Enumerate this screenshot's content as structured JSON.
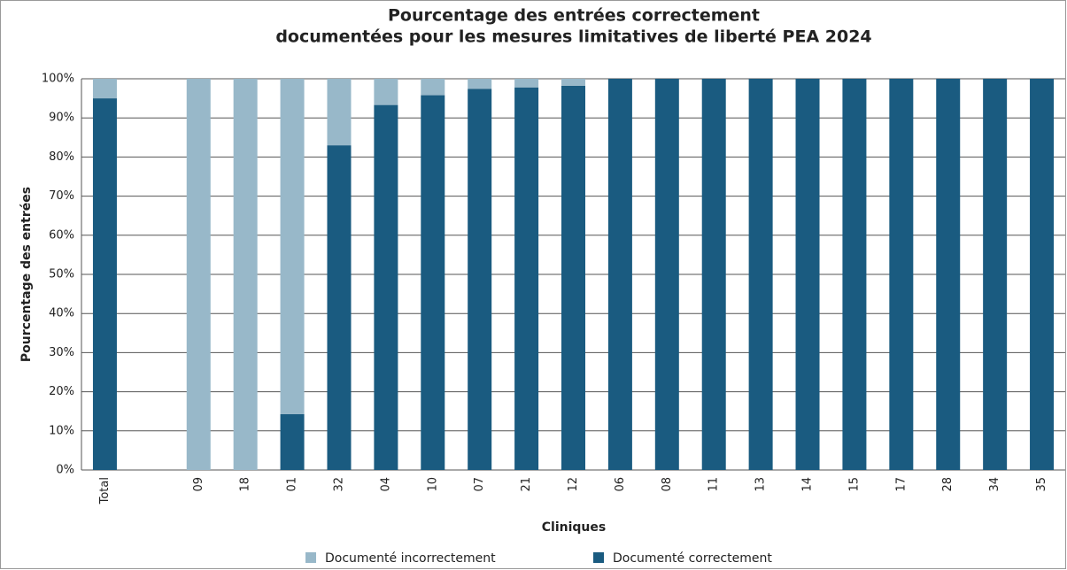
{
  "chart_data": {
    "type": "stacked_bar",
    "title": [
      "Pourcentage des entrées correctement",
      "documentées pour les mesures limitatives de liberté PEA 2024"
    ],
    "x_label": "Cliniques",
    "y_label": "Pourcentage des entrées",
    "categories": [
      "Total",
      null,
      "09",
      "18",
      "01",
      "32",
      "04",
      "10",
      "07",
      "21",
      "12",
      "06",
      "08",
      "11",
      "13",
      "14",
      "15",
      "17",
      "28",
      "34",
      "35"
    ],
    "series": [
      {
        "name": "Documenté incorrectement",
        "color": "#98b8c9",
        "values": [
          5,
          null,
          100,
          100,
          85.7,
          17,
          6.7,
          4.2,
          2.6,
          2.2,
          1.8,
          0,
          0,
          0,
          0,
          0,
          0,
          0,
          0,
          0,
          0
        ]
      },
      {
        "name": "Documenté correctement",
        "color": "#1a5b80",
        "values": [
          95,
          null,
          0,
          0,
          14.3,
          83,
          93.3,
          95.8,
          97.4,
          97.8,
          98.2,
          100,
          100,
          100,
          100,
          100,
          100,
          100,
          100,
          100,
          100
        ]
      }
    ],
    "ylim": [
      0,
      100
    ],
    "yticks": [
      {
        "value": 0,
        "label": "0%"
      },
      {
        "value": 10,
        "label": "10%"
      },
      {
        "value": 20,
        "label": "20%"
      },
      {
        "value": 30,
        "label": "30%"
      },
      {
        "value": 40,
        "label": "40%"
      },
      {
        "value": 50,
        "label": "50%"
      },
      {
        "value": 60,
        "label": "60%"
      },
      {
        "value": 70,
        "label": "70%"
      },
      {
        "value": 80,
        "label": "80%"
      },
      {
        "value": 90,
        "label": "90%"
      },
      {
        "value": 100,
        "label": "100%"
      }
    ],
    "grid": true,
    "legend": "bottom"
  }
}
